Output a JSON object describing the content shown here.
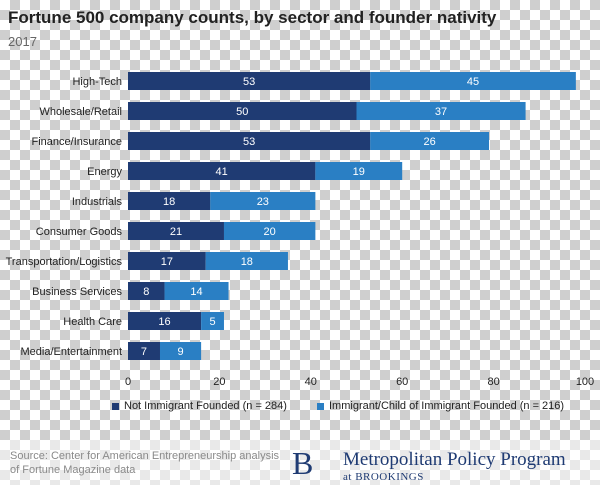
{
  "chart_data": {
    "type": "bar",
    "orientation": "horizontal",
    "stacked": true,
    "title": "Fortune 500 company counts, by sector and founder nativity",
    "subtitle": "2017",
    "categories": [
      "High-Tech",
      "Wholesale/Retail",
      "Finance/Insurance",
      "Energy",
      "Industrials",
      "Consumer Goods",
      "Transportation/Logistics",
      "Business Services",
      "Health Care",
      "Media/Entertainment"
    ],
    "series": [
      {
        "name": "Not Immigrant Founded (n = 284)",
        "color": "#1f3b73",
        "values": [
          53,
          50,
          53,
          41,
          18,
          21,
          17,
          8,
          16,
          7
        ]
      },
      {
        "name": "Immigrant/Child of Immigrant Founded (n = 216)",
        "color": "#2a7fc4",
        "values": [
          45,
          37,
          26,
          19,
          23,
          20,
          18,
          14,
          5,
          9
        ]
      }
    ],
    "xlim": [
      0,
      100
    ],
    "xticks": [
      0,
      20,
      40,
      60,
      80,
      100
    ],
    "xticks_labels": [
      "0",
      "20",
      "40",
      "60",
      "80",
      "100"
    ],
    "legend_position": "bottom",
    "grid": false
  },
  "footer": {
    "source": "Source: Center for American Entrepreneurship analysis of Fortune Magazine data",
    "brand_mark": "B",
    "brand_name": "Metropolitan Policy Program",
    "brand_sub": "at BROOKINGS"
  }
}
